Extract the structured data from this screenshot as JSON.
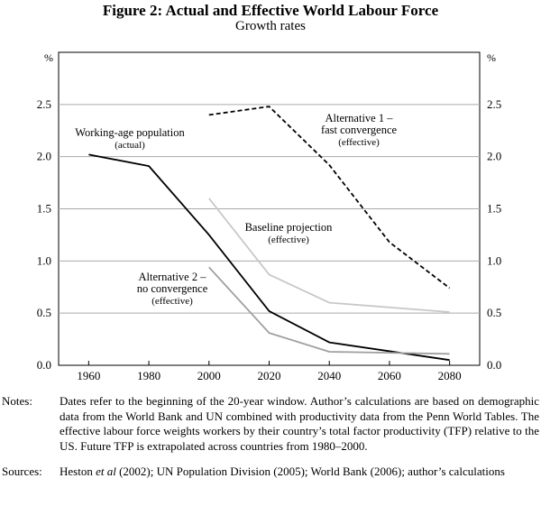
{
  "title": "Figure 2: Actual and Effective World Labour Force",
  "subtitle": "Growth rates",
  "chart_data": {
    "type": "line",
    "ylabel_left": "%",
    "ylabel_right": "%",
    "ylim": [
      0,
      3.0
    ],
    "yticks": [
      0.0,
      0.5,
      1.0,
      1.5,
      2.0,
      2.5
    ],
    "ytick_labels": [
      "0.0",
      "0.5",
      "1.0",
      "1.5",
      "2.0",
      "2.5"
    ],
    "xlim": [
      1950,
      2090
    ],
    "xticks": [
      1960,
      1980,
      2000,
      2020,
      2040,
      2060,
      2080
    ],
    "xtick_labels": [
      "1960",
      "1980",
      "2000",
      "2020",
      "2040",
      "2060",
      "2080"
    ],
    "grid": true,
    "series": [
      {
        "name": "Working-age population (actual)",
        "label_lines": [
          "Working-age population",
          "(actual)"
        ],
        "color": "#000000",
        "dash": "solid",
        "x": [
          1960,
          1980,
          2000,
          2020,
          2040,
          2080
        ],
        "values": [
          2.02,
          1.91,
          1.25,
          0.52,
          0.22,
          0.05
        ]
      },
      {
        "name": "Alternative 1 – fast convergence (effective)",
        "label_lines": [
          "Alternative 1 –",
          "fast convergence",
          "(effective)"
        ],
        "color": "#000000",
        "dash": "dashed",
        "x": [
          2000,
          2020,
          2040,
          2060,
          2080
        ],
        "values": [
          2.4,
          2.48,
          1.92,
          1.18,
          0.74
        ]
      },
      {
        "name": "Baseline projection (effective)",
        "label_lines": [
          "Baseline projection",
          "(effective)"
        ],
        "color": "#c8c8c8",
        "dash": "solid",
        "x": [
          2000,
          2020,
          2040,
          2080
        ],
        "values": [
          1.6,
          0.87,
          0.6,
          0.51
        ]
      },
      {
        "name": "Alternative 2 – no convergence (effective)",
        "label_lines": [
          "Alternative 2 –",
          "no convergence",
          "(effective)"
        ],
        "color": "#a0a0a0",
        "dash": "solid",
        "x": [
          2000,
          2020,
          2040,
          2080
        ],
        "values": [
          0.94,
          0.31,
          0.13,
          0.11
        ]
      }
    ]
  },
  "notes": {
    "label": "Notes:",
    "text": "Dates refer to the beginning of the 20-year window. Author’s calculations are based on demographic data from the World Bank and UN combined with productivity data from the Penn World Tables. The effective labour force weights workers by their country’s total factor productivity (TFP) relative to the US. Future TFP is extrapolated across countries from 1980–2000."
  },
  "sources": {
    "label": "Sources:",
    "text_parts": [
      "Heston ",
      "et al",
      " (2002); UN Population Division (2005); World Bank (2006); author’s calculations"
    ]
  }
}
